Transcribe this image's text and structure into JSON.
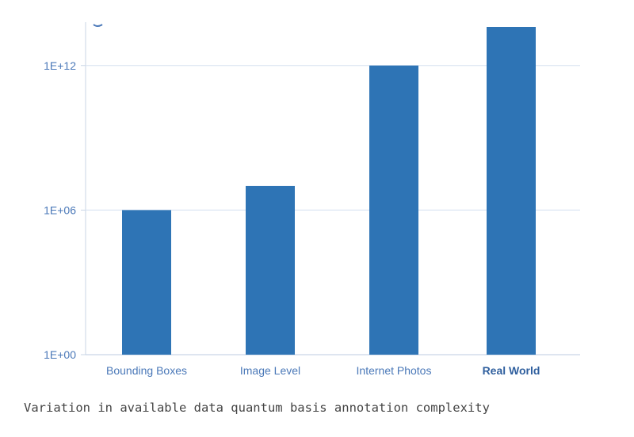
{
  "chart_data": {
    "type": "bar",
    "categories": [
      "Bounding Boxes",
      "Image Level",
      "Internet Photos",
      "Real World"
    ],
    "values": [
      1000000,
      10000000,
      1000000000000,
      40000000000000
    ],
    "highlighted_category": "Real World",
    "y_scale": "log",
    "ylim": [
      1,
      40000000000000
    ],
    "y_ticks": [
      {
        "value": 1,
        "label": "1E+00"
      },
      {
        "value": 1000000,
        "label": "1E+06"
      },
      {
        "value": 1000000000000,
        "label": "1E+12"
      }
    ],
    "grid": true,
    "legend": "none",
    "bar_color": "#2e74b5",
    "grid_color": "#dde6f3",
    "axis_color": "#c9d5e6"
  },
  "caption": "Variation in available data quantum basis annotation complexity"
}
